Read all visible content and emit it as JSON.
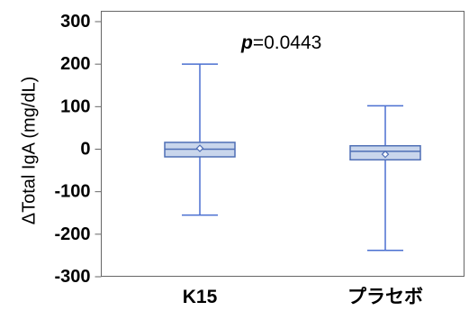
{
  "chart_data": {
    "type": "boxplot",
    "ylabel": "ΔTotal IgA (mg/dL)",
    "ylim": [
      -300,
      300
    ],
    "yticks": [
      "300",
      "200",
      "100",
      "0",
      "-100",
      "-200",
      "-300"
    ],
    "ytick_values": [
      300,
      200,
      100,
      0,
      -100,
      -200,
      -300
    ],
    "annotation": {
      "p_prefix": "p",
      "p_value": "=0.0443"
    },
    "categories": [
      "K15",
      "プラセボ"
    ],
    "boxes": [
      {
        "category": "K15",
        "whisker_low": -155,
        "q1": -18,
        "median": 0,
        "q3": 16,
        "whisker_high": 200,
        "mean": 2
      },
      {
        "category": "プラセボ",
        "whisker_low": -238,
        "q1": -25,
        "median": -5,
        "q3": 8,
        "whisker_high": 102,
        "mean": -12
      }
    ],
    "colors": {
      "box_fill": "#c9d6ec",
      "box_stroke": "#4f6fb5",
      "whisker": "#4a6fd0",
      "axis": "#666666"
    }
  }
}
